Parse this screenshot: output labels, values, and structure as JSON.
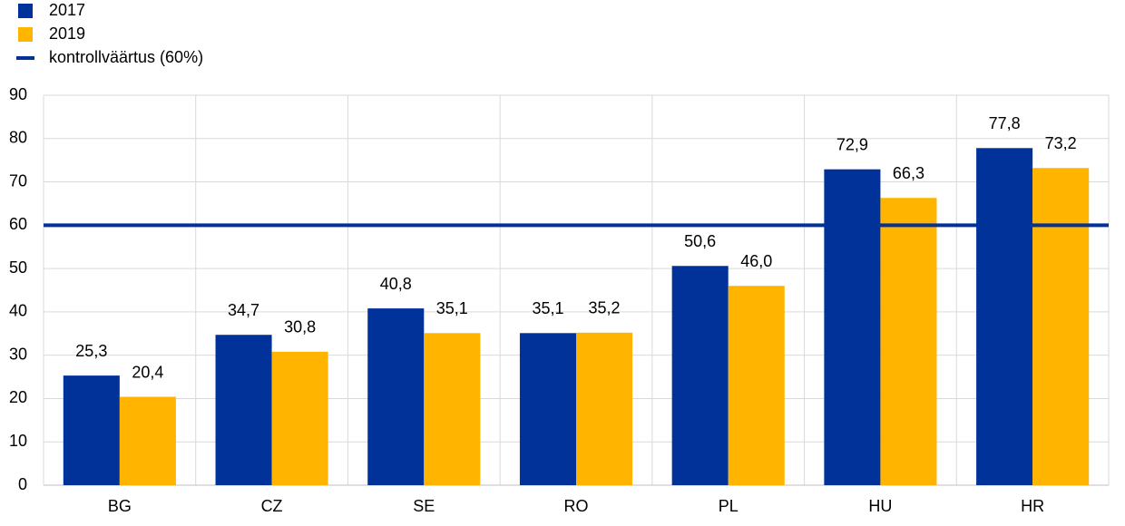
{
  "chart_data": {
    "type": "bar",
    "categories": [
      "BG",
      "CZ",
      "SE",
      "RO",
      "PL",
      "HU",
      "HR"
    ],
    "series": [
      {
        "name": "2017",
        "color": "#003299",
        "values": [
          25.3,
          34.7,
          40.8,
          35.1,
          50.6,
          72.9,
          77.8
        ],
        "value_labels": [
          "25,3",
          "34,7",
          "40,8",
          "35,1",
          "50,6",
          "72,9",
          "77,8"
        ]
      },
      {
        "name": "2019",
        "color": "#ffb400",
        "values": [
          20.4,
          30.8,
          35.1,
          35.2,
          46.0,
          66.3,
          73.2
        ],
        "value_labels": [
          "20,4",
          "30,8",
          "35,1",
          "35,2",
          "46,0",
          "66,3",
          "73,2"
        ]
      }
    ],
    "reference_line": {
      "name": "kontrollväärtus (60%)",
      "value": 60,
      "color": "#003299"
    },
    "ylim": [
      0,
      90
    ],
    "yticks": [
      0,
      10,
      20,
      30,
      40,
      50,
      60,
      70,
      80,
      90
    ],
    "grid": true
  }
}
